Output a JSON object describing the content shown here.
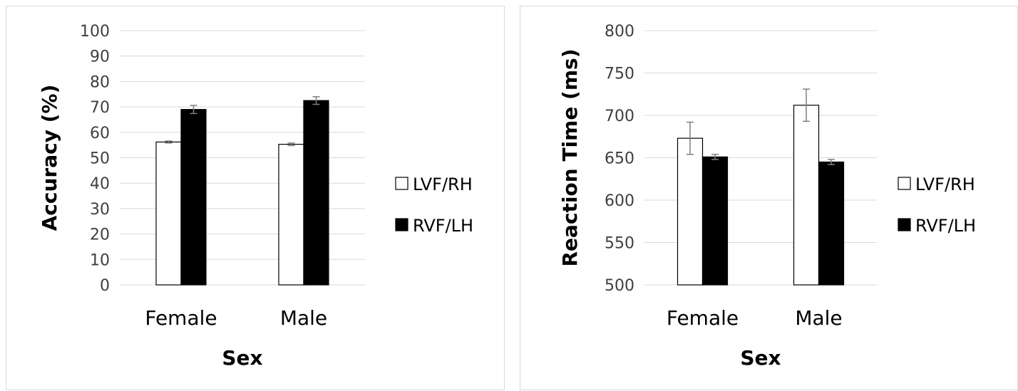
{
  "chart_data": [
    {
      "type": "bar",
      "title": "",
      "xlabel": "Sex",
      "ylabel": "Accuracy (%)",
      "categories": [
        "Female",
        "Male"
      ],
      "ylim": [
        0,
        100
      ],
      "yticks": [
        0,
        10,
        20,
        30,
        40,
        50,
        60,
        70,
        80,
        90,
        100
      ],
      "grid": true,
      "legend": "right",
      "series": [
        {
          "name": "LVF/RH",
          "color": "#ffffff",
          "values": [
            56.2,
            55.3
          ],
          "errors": [
            0.4,
            0.5
          ]
        },
        {
          "name": "RVF/LH",
          "color": "#000000",
          "values": [
            69.0,
            72.5
          ],
          "errors": [
            1.6,
            1.5
          ]
        }
      ]
    },
    {
      "type": "bar",
      "title": "",
      "xlabel": "Sex",
      "ylabel": "Reaction Time (ms)",
      "categories": [
        "Female",
        "Male"
      ],
      "ylim": [
        500,
        800
      ],
      "yticks": [
        500,
        550,
        600,
        650,
        700,
        750,
        800
      ],
      "grid": true,
      "legend": "right",
      "series": [
        {
          "name": "LVF/RH",
          "color": "#ffffff",
          "values": [
            673,
            712
          ],
          "errors": [
            19,
            19
          ]
        },
        {
          "name": "RVF/LH",
          "color": "#000000",
          "values": [
            651,
            645
          ],
          "errors": [
            3,
            3
          ]
        }
      ]
    }
  ]
}
